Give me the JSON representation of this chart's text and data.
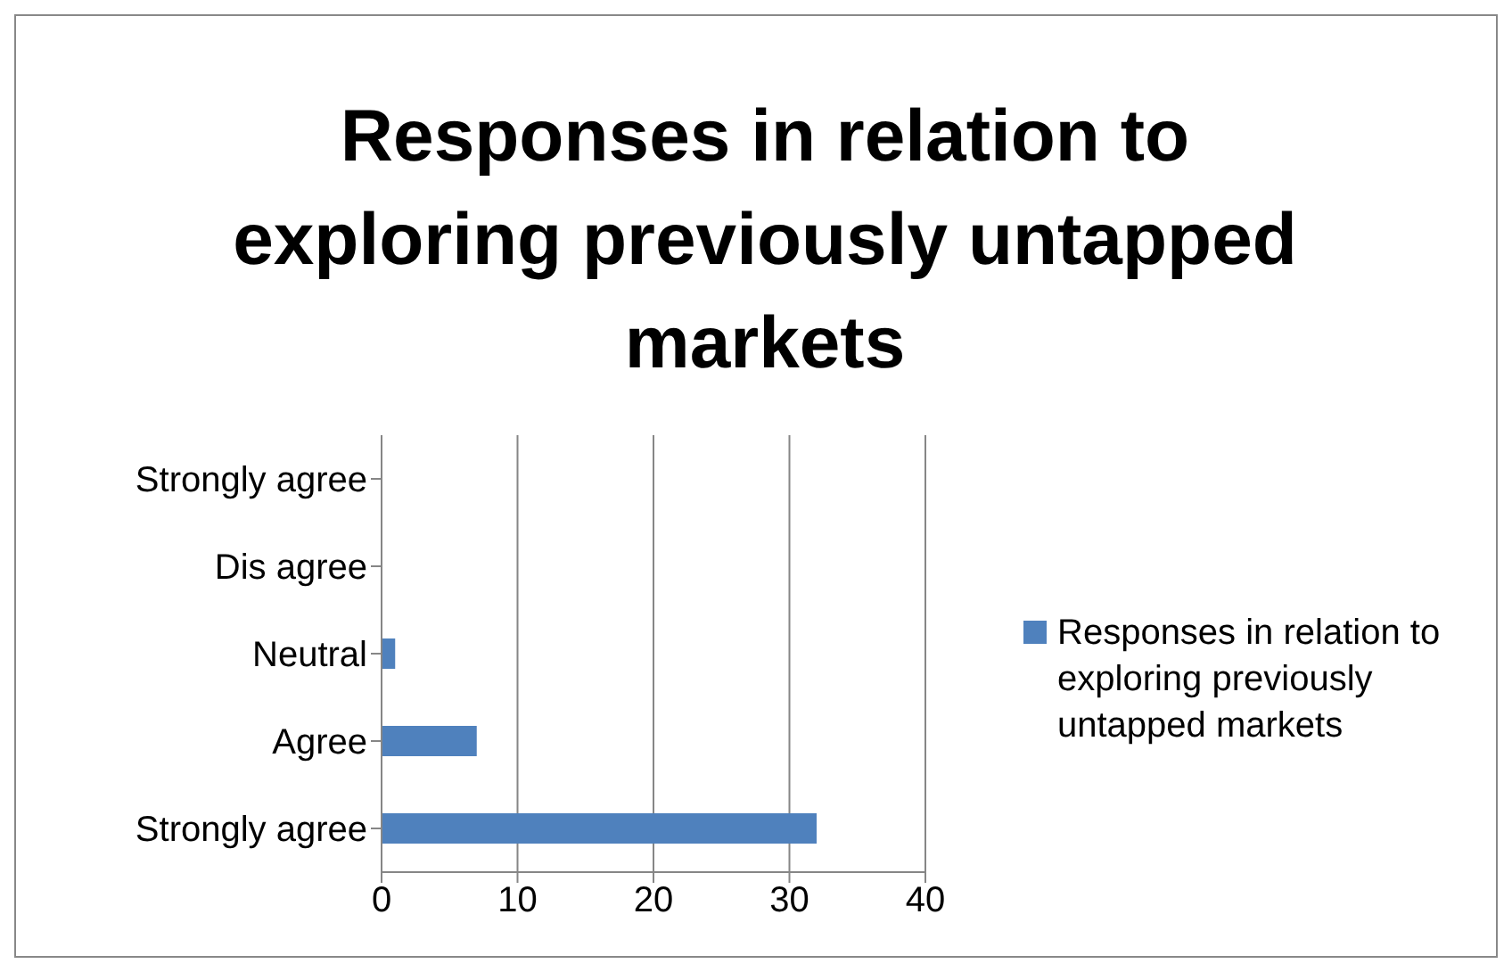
{
  "chart_data": {
    "type": "bar",
    "title": "Responses in relation to exploring previously untapped markets",
    "orientation": "horizontal",
    "categories": [
      "Strongly agree",
      "Dis agree",
      "Neutral",
      "Agree",
      "Strongly agree"
    ],
    "series": [
      {
        "name": "Responses in relation to exploring previously untapped markets",
        "color": "#4f81bd",
        "values": [
          0,
          0,
          1,
          7,
          32
        ]
      }
    ],
    "xlim": [
      0,
      40
    ],
    "xticks": [
      0,
      10,
      20,
      30,
      40
    ],
    "grid": "x",
    "legend": "right"
  }
}
